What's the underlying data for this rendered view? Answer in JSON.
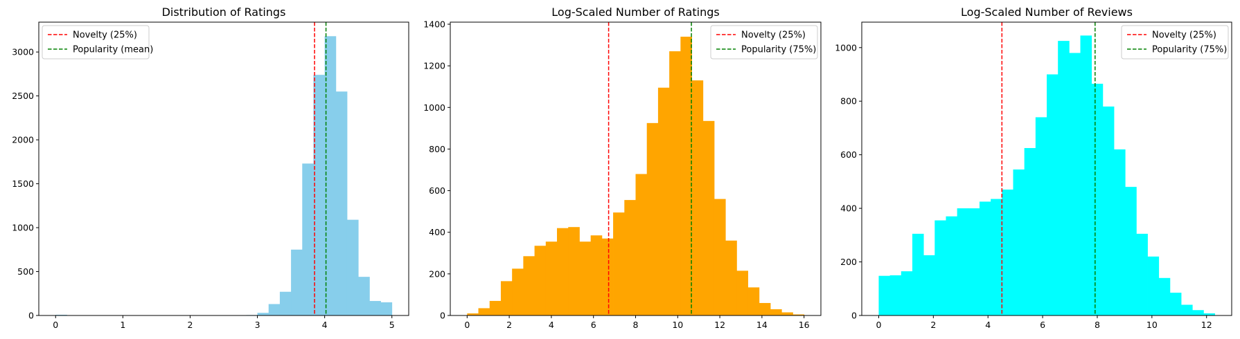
{
  "chart_data": [
    {
      "type": "bar",
      "title": "Distribution of Ratings",
      "xlabel": "",
      "ylabel": "",
      "xlim": [
        -0.25,
        5.25
      ],
      "ylim": [
        0,
        3340
      ],
      "xticks": [
        0,
        1,
        2,
        3,
        4,
        5
      ],
      "yticks": [
        0,
        500,
        1000,
        1500,
        2000,
        2500,
        3000
      ],
      "bin_edges": [
        0,
        0.1667,
        0.3333,
        0.5,
        0.6667,
        0.8333,
        1.0,
        1.1667,
        1.3333,
        1.5,
        1.6667,
        1.8333,
        2.0,
        2.1667,
        2.3333,
        2.5,
        2.6667,
        2.8333,
        3.0,
        3.1667,
        3.3333,
        3.5,
        3.6667,
        3.8333,
        4.0,
        4.1667,
        4.3333,
        4.5,
        4.6667,
        4.8333,
        5.0
      ],
      "counts": [
        8,
        0,
        0,
        0,
        0,
        0,
        0,
        0,
        0,
        0,
        0,
        0,
        0,
        0,
        0,
        0,
        0,
        5,
        30,
        130,
        270,
        750,
        1730,
        2740,
        3180,
        2550,
        1090,
        440,
        165,
        150
      ],
      "bar_color": "#87ceeb",
      "lines": [
        {
          "x": 3.85,
          "color": "#ff0000",
          "label": "Novelty (25%)"
        },
        {
          "x": 4.02,
          "color": "#008000",
          "label": "Popularity (mean)"
        }
      ],
      "legend_position": "upper-left",
      "grid": false
    },
    {
      "type": "bar",
      "title": "Log-Scaled Number of Ratings",
      "xlabel": "",
      "ylabel": "",
      "xlim": [
        -0.8,
        16.8
      ],
      "ylim": [
        0,
        1410
      ],
      "xticks": [
        0,
        2,
        4,
        6,
        8,
        10,
        12,
        14,
        16
      ],
      "yticks": [
        0,
        200,
        400,
        600,
        800,
        1000,
        1200,
        1400
      ],
      "bin_edges": [
        0,
        0.5333,
        1.0667,
        1.6,
        2.1333,
        2.6667,
        3.2,
        3.7333,
        4.2667,
        4.8,
        5.3333,
        5.8667,
        6.4,
        6.9333,
        7.4667,
        8.0,
        8.5333,
        9.0667,
        9.6,
        10.1333,
        10.6667,
        11.2,
        11.7333,
        12.2667,
        12.8,
        13.3333,
        13.8667,
        14.4,
        14.9333,
        15.4667,
        16.0
      ],
      "counts": [
        10,
        35,
        70,
        165,
        225,
        285,
        335,
        355,
        420,
        425,
        355,
        385,
        370,
        495,
        555,
        680,
        925,
        1095,
        1270,
        1340,
        1130,
        935,
        560,
        360,
        215,
        135,
        60,
        30,
        15,
        5
      ],
      "bar_color": "#ffa500",
      "lines": [
        {
          "x": 6.72,
          "color": "#ff0000",
          "label": "Novelty (25%)"
        },
        {
          "x": 10.65,
          "color": "#008000",
          "label": "Popularity (75%)"
        }
      ],
      "legend_position": "upper-right",
      "grid": false
    },
    {
      "type": "bar",
      "title": "Log-Scaled Number of Reviews",
      "xlabel": "",
      "ylabel": "",
      "xlim": [
        -0.62,
        12.92
      ],
      "ylim": [
        0,
        1095
      ],
      "xticks": [
        0,
        2,
        4,
        6,
        8,
        10,
        12
      ],
      "yticks": [
        0,
        200,
        400,
        600,
        800,
        1000
      ],
      "bin_edges": [
        0,
        0.41,
        0.82,
        1.23,
        1.64,
        2.05,
        2.46,
        2.87,
        3.28,
        3.69,
        4.1,
        4.51,
        4.92,
        5.33,
        5.74,
        6.15,
        6.56,
        6.97,
        7.38,
        7.79,
        8.2,
        8.61,
        9.02,
        9.43,
        9.84,
        10.25,
        10.66,
        11.07,
        11.48,
        11.89,
        12.3
      ],
      "counts": [
        148,
        150,
        165,
        305,
        225,
        355,
        370,
        400,
        400,
        425,
        435,
        470,
        545,
        625,
        740,
        900,
        1025,
        980,
        1045,
        865,
        780,
        620,
        480,
        305,
        220,
        140,
        85,
        40,
        20,
        8
      ],
      "bar_color": "#00ffff",
      "lines": [
        {
          "x": 4.51,
          "color": "#ff0000",
          "label": "Novelty (25%)"
        },
        {
          "x": 7.92,
          "color": "#008000",
          "label": "Popularity (75%)"
        }
      ],
      "legend_position": "upper-right",
      "grid": false
    }
  ]
}
